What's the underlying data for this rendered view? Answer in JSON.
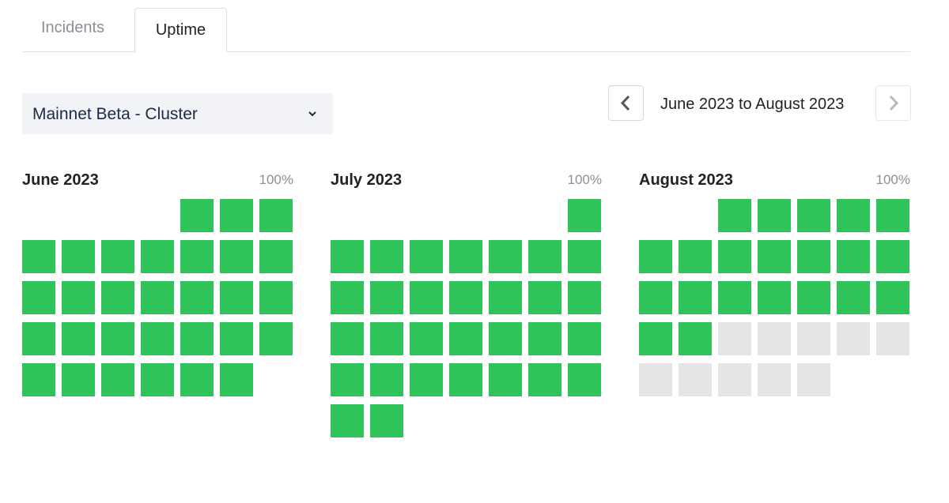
{
  "tabs": [
    "Incidents",
    "Uptime"
  ],
  "selector": {
    "label": "Mainnet Beta - Cluster"
  },
  "range": {
    "label": "June 2023 to August 2023"
  },
  "months": [
    {
      "name": "June 2023",
      "uptime": "100%",
      "day_colors": [
        "#2fc45a",
        "#2fc45a",
        "#2fc45a",
        "#2fc45a",
        "#2fc45a",
        "#2fc45a",
        "#2fc45a",
        "#2fc45a",
        "#2fc45a",
        "#2fc45a",
        "#2fc45a",
        "#2fc45a",
        "#2fc45a",
        "#2fc45a",
        "#2fc45a",
        "#2fc45a",
        "#2fc45a",
        "#2fc45a",
        "#2fc45a",
        "#2fc45a",
        "#2fc45a",
        "#2fc45a",
        "#2fc45a",
        "#2fc45a",
        "#2fc45a",
        "#2fc45a",
        "#2fc45a",
        "#2fc45a",
        "#2fc45a",
        "#2fc45a"
      ]
    },
    {
      "name": "July 2023",
      "uptime": "100%",
      "day_colors": [
        "#2fc45a",
        "#2fc45a",
        "#2fc45a",
        "#2fc45a",
        "#2fc45a",
        "#2fc45a",
        "#2fc45a",
        "#2fc45a",
        "#2fc45a",
        "#2fc45a",
        "#2fc45a",
        "#2fc45a",
        "#2fc45a",
        "#2fc45a",
        "#2fc45a",
        "#2fc45a",
        "#2fc45a",
        "#2fc45a",
        "#2fc45a",
        "#2fc45a",
        "#2fc45a",
        "#2fc45a",
        "#2fc45a",
        "#2fc45a",
        "#2fc45a",
        "#2fc45a",
        "#2fc45a",
        "#2fc45a",
        "#2fc45a",
        "#2fc45a",
        "#2fc45a"
      ]
    },
    {
      "name": "August 2023",
      "uptime": "100%",
      "day_colors": [
        "#2fc45a",
        "#2fc45a",
        "#2fc45a",
        "#2fc45a",
        "#2fc45a",
        "#2fc45a",
        "#2fc45a",
        "#2fc45a",
        "#2fc45a",
        "#2fc45a",
        "#2fc45a",
        "#2fc45a",
        "#2fc45a",
        "#2fc45a",
        "#2fc45a",
        "#2fc45a",
        "#2fc45a",
        "#2fc45a",
        "#2fc45a",
        "#2fc45a",
        "#2fc45a",
        "#e4e4e4",
        "#e4e4e4",
        "#e4e4e4",
        "#e4e4e4",
        "#e4e4e4",
        "#e4e4e4",
        "#e4e4e4",
        "#e4e4e4",
        "#e4e4e4",
        "#e4e4e4"
      ]
    }
  ]
}
